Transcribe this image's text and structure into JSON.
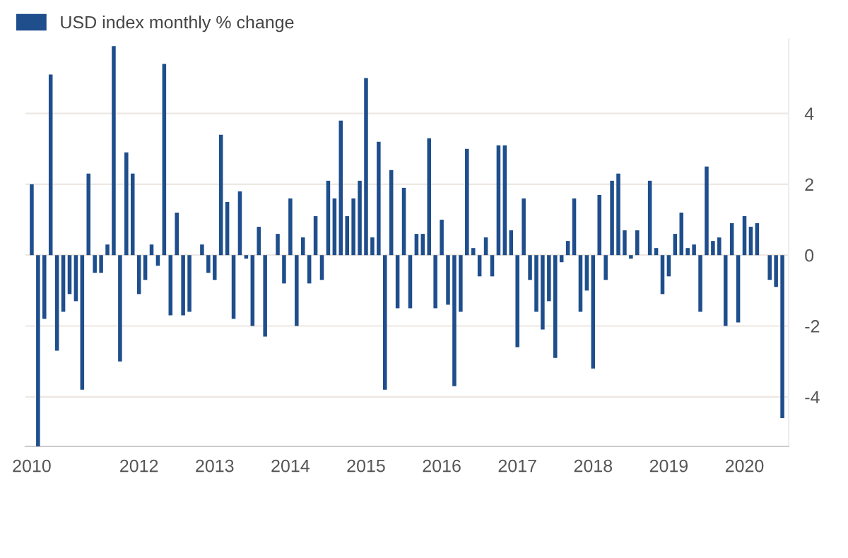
{
  "chart_data": {
    "type": "bar",
    "categories": [
      "2010",
      null,
      null,
      null,
      null,
      null,
      null,
      null,
      null,
      null,
      null,
      null,
      null,
      null,
      null,
      null,
      null,
      "2012",
      null,
      null,
      null,
      null,
      null,
      null,
      null,
      null,
      null,
      null,
      null,
      "2013",
      null,
      null,
      null,
      null,
      null,
      null,
      null,
      null,
      null,
      null,
      null,
      "2014",
      null,
      null,
      null,
      null,
      null,
      null,
      null,
      null,
      null,
      null,
      null,
      "2015",
      null,
      null,
      null,
      null,
      null,
      null,
      null,
      null,
      null,
      null,
      null,
      "2016",
      null,
      null,
      null,
      null,
      null,
      null,
      null,
      null,
      null,
      null,
      null,
      "2017",
      null,
      null,
      null,
      null,
      null,
      null,
      null,
      null,
      null,
      null,
      null,
      "2018",
      null,
      null,
      null,
      null,
      null,
      null,
      null,
      null,
      null,
      null,
      null,
      "2019",
      null,
      null,
      null,
      null,
      null,
      null,
      null,
      null,
      null,
      null,
      null,
      "2020",
      null,
      null,
      null,
      null,
      null,
      null
    ],
    "series": [
      {
        "name": "USD index monthly % change",
        "color": "#1f4e8c",
        "values": [
          2.0,
          -5.4,
          -1.8,
          5.1,
          -2.7,
          -1.6,
          -1.1,
          -1.3,
          -3.8,
          2.3,
          -0.5,
          -0.5,
          0.3,
          5.9,
          -3.0,
          2.9,
          2.3,
          -1.1,
          -0.7,
          0.3,
          -0.3,
          5.4,
          -1.7,
          1.2,
          -1.7,
          -1.6,
          0,
          0.3,
          -0.5,
          -0.7,
          3.4,
          1.5,
          -1.8,
          1.8,
          -0.1,
          -2.0,
          0.8,
          -2.3,
          0,
          0.6,
          -0.8,
          1.6,
          -2.0,
          0.5,
          -0.8,
          1.1,
          -0.7,
          2.1,
          1.6,
          3.8,
          1.1,
          1.6,
          2.1,
          5.0,
          0.5,
          3.2,
          -3.8,
          2.4,
          -1.5,
          1.9,
          -1.5,
          0.6,
          0.6,
          3.3,
          -1.5,
          1.0,
          -1.4,
          -3.7,
          -1.6,
          3.0,
          0.2,
          -0.6,
          0.5,
          -0.6,
          3.1,
          3.1,
          0.7,
          -2.6,
          1.6,
          -0.7,
          -1.6,
          -2.1,
          -1.3,
          -2.9,
          -0.2,
          0.4,
          1.6,
          -1.6,
          -1.0,
          -3.2,
          1.7,
          -0.7,
          2.1,
          2.3,
          0.7,
          -0.1,
          0.7,
          0,
          2.1,
          0.2,
          -1.1,
          -0.6,
          0.6,
          1.2,
          0.2,
          0.3,
          -1.6,
          2.5,
          0.4,
          0.5,
          -2.0,
          0.9,
          -1.9,
          1.1,
          0.8,
          0.9,
          0,
          -0.7,
          -0.9,
          -4.6
        ]
      }
    ],
    "ylim": [
      -5.4,
      6.1
    ],
    "yticks": [
      {
        "value": -4,
        "label": "-4"
      },
      {
        "value": -2,
        "label": "-2"
      },
      0,
      2,
      4
    ],
    "grid": "y",
    "legend": "top left"
  }
}
